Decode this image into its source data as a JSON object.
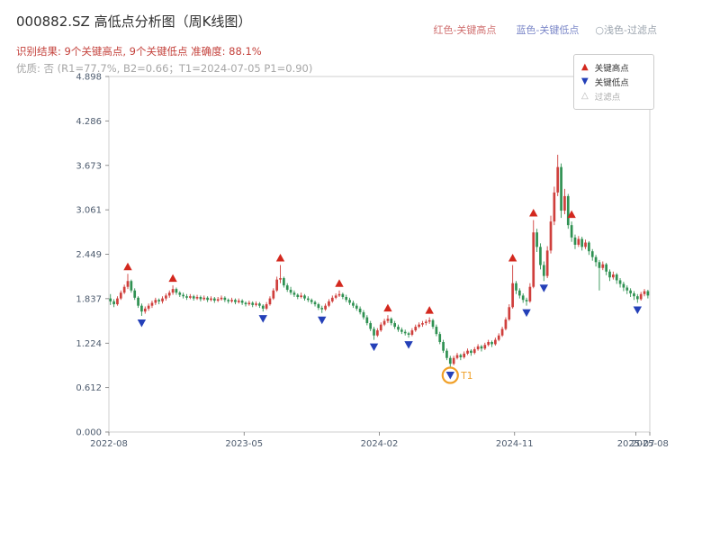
{
  "header": {
    "title": "000882.SZ 高低点分析图（周K线图）",
    "legend_top": {
      "high_label": "红色-关键高点",
      "low_label": "蓝色-关键低点",
      "filter_label": "○浅色-过滤点"
    },
    "result_line": "识别结果: 9个关键高点, 9个关键低点  准确度: 88.1%",
    "quality_line": "优质: 否 (R1=77.7%, B2=0.66；T1=2024-07-05 P1=0.90)"
  },
  "legend_box": {
    "items": [
      {
        "label": "关键高点",
        "type": "key-high"
      },
      {
        "label": "关键低点",
        "type": "key-low"
      },
      {
        "label": "过滤点",
        "type": "filtered"
      }
    ]
  },
  "chart_data": {
    "type": "candlestick",
    "symbol": "000882.SZ",
    "period": "weekly",
    "title": "000882.SZ 高低点分析图（周K线图）",
    "ylim": [
      0,
      4.898
    ],
    "y_ticks": [
      "0.000",
      "0.612",
      "1.224",
      "1.837",
      "2.449",
      "3.061",
      "3.673",
      "4.286",
      "4.898"
    ],
    "x_ticks": [
      {
        "i": 0,
        "label": "2022-08"
      },
      {
        "i": 39,
        "label": "2023-05"
      },
      {
        "i": 78,
        "label": "2024-02"
      },
      {
        "i": 117,
        "label": "2024-11"
      },
      {
        "i": 152,
        "label": "2025-07"
      },
      {
        "i": 156,
        "label": "2025-08"
      }
    ],
    "grid": false,
    "legend_position": "top-right",
    "candles": [
      [
        1.84,
        1.9,
        1.75,
        1.8
      ],
      [
        1.8,
        1.83,
        1.72,
        1.76
      ],
      [
        1.76,
        1.87,
        1.74,
        1.84
      ],
      [
        1.84,
        1.95,
        1.82,
        1.92
      ],
      [
        1.92,
        2.03,
        1.9,
        2.0
      ],
      [
        2.0,
        2.18,
        1.97,
        2.08
      ],
      [
        2.08,
        2.1,
        1.92,
        1.95
      ],
      [
        1.95,
        1.98,
        1.82,
        1.85
      ],
      [
        1.85,
        1.87,
        1.71,
        1.74
      ],
      [
        1.74,
        1.77,
        1.6,
        1.66
      ],
      [
        1.66,
        1.73,
        1.63,
        1.7
      ],
      [
        1.7,
        1.77,
        1.67,
        1.74
      ],
      [
        1.74,
        1.81,
        1.71,
        1.78
      ],
      [
        1.78,
        1.85,
        1.75,
        1.82
      ],
      [
        1.82,
        1.84,
        1.76,
        1.8
      ],
      [
        1.8,
        1.87,
        1.77,
        1.84
      ],
      [
        1.84,
        1.91,
        1.81,
        1.88
      ],
      [
        1.88,
        1.95,
        1.85,
        1.92
      ],
      [
        1.92,
        2.02,
        1.89,
        1.97
      ],
      [
        1.97,
        1.99,
        1.89,
        1.92
      ],
      [
        1.92,
        1.94,
        1.86,
        1.89
      ],
      [
        1.89,
        1.92,
        1.84,
        1.87
      ],
      [
        1.87,
        1.9,
        1.82,
        1.85
      ],
      [
        1.85,
        1.9,
        1.83,
        1.87
      ],
      [
        1.87,
        1.89,
        1.81,
        1.84
      ],
      [
        1.84,
        1.89,
        1.82,
        1.86
      ],
      [
        1.86,
        1.88,
        1.8,
        1.83
      ],
      [
        1.83,
        1.88,
        1.81,
        1.85
      ],
      [
        1.85,
        1.87,
        1.79,
        1.82
      ],
      [
        1.82,
        1.87,
        1.8,
        1.84
      ],
      [
        1.84,
        1.86,
        1.78,
        1.81
      ],
      [
        1.81,
        1.86,
        1.79,
        1.83
      ],
      [
        1.83,
        1.88,
        1.81,
        1.85
      ],
      [
        1.85,
        1.87,
        1.79,
        1.82
      ],
      [
        1.82,
        1.84,
        1.77,
        1.8
      ],
      [
        1.8,
        1.85,
        1.78,
        1.82
      ],
      [
        1.82,
        1.84,
        1.76,
        1.79
      ],
      [
        1.79,
        1.84,
        1.77,
        1.81
      ],
      [
        1.81,
        1.83,
        1.75,
        1.78
      ],
      [
        1.78,
        1.8,
        1.73,
        1.76
      ],
      [
        1.76,
        1.81,
        1.74,
        1.78
      ],
      [
        1.78,
        1.8,
        1.72,
        1.75
      ],
      [
        1.75,
        1.8,
        1.73,
        1.77
      ],
      [
        1.77,
        1.79,
        1.71,
        1.74
      ],
      [
        1.74,
        1.76,
        1.66,
        1.7
      ],
      [
        1.7,
        1.79,
        1.68,
        1.76
      ],
      [
        1.76,
        1.87,
        1.74,
        1.84
      ],
      [
        1.84,
        1.98,
        1.82,
        1.95
      ],
      [
        1.95,
        2.14,
        1.93,
        2.1
      ],
      [
        2.1,
        2.3,
        2.05,
        2.12
      ],
      [
        2.12,
        2.14,
        1.99,
        2.02
      ],
      [
        2.02,
        2.05,
        1.93,
        1.96
      ],
      [
        1.96,
        2.0,
        1.89,
        1.92
      ],
      [
        1.92,
        1.95,
        1.86,
        1.89
      ],
      [
        1.89,
        1.91,
        1.83,
        1.86
      ],
      [
        1.86,
        1.92,
        1.84,
        1.88
      ],
      [
        1.88,
        1.9,
        1.81,
        1.84
      ],
      [
        1.84,
        1.87,
        1.79,
        1.82
      ],
      [
        1.82,
        1.84,
        1.76,
        1.79
      ],
      [
        1.79,
        1.81,
        1.73,
        1.76
      ],
      [
        1.76,
        1.78,
        1.68,
        1.71
      ],
      [
        1.71,
        1.74,
        1.64,
        1.69
      ],
      [
        1.69,
        1.77,
        1.67,
        1.74
      ],
      [
        1.74,
        1.83,
        1.72,
        1.8
      ],
      [
        1.8,
        1.88,
        1.78,
        1.85
      ],
      [
        1.85,
        1.91,
        1.83,
        1.88
      ],
      [
        1.88,
        1.95,
        1.86,
        1.9
      ],
      [
        1.9,
        1.92,
        1.83,
        1.86
      ],
      [
        1.86,
        1.89,
        1.79,
        1.82
      ],
      [
        1.82,
        1.85,
        1.75,
        1.78
      ],
      [
        1.78,
        1.81,
        1.71,
        1.74
      ],
      [
        1.74,
        1.77,
        1.67,
        1.7
      ],
      [
        1.7,
        1.73,
        1.62,
        1.65
      ],
      [
        1.65,
        1.68,
        1.55,
        1.58
      ],
      [
        1.58,
        1.61,
        1.47,
        1.5
      ],
      [
        1.5,
        1.53,
        1.39,
        1.42
      ],
      [
        1.42,
        1.45,
        1.27,
        1.33
      ],
      [
        1.33,
        1.43,
        1.31,
        1.4
      ],
      [
        1.4,
        1.51,
        1.38,
        1.48
      ],
      [
        1.48,
        1.56,
        1.46,
        1.53
      ],
      [
        1.53,
        1.61,
        1.5,
        1.56
      ],
      [
        1.56,
        1.58,
        1.47,
        1.5
      ],
      [
        1.5,
        1.53,
        1.42,
        1.45
      ],
      [
        1.45,
        1.48,
        1.38,
        1.41
      ],
      [
        1.41,
        1.44,
        1.35,
        1.38
      ],
      [
        1.38,
        1.41,
        1.33,
        1.36
      ],
      [
        1.36,
        1.38,
        1.3,
        1.34
      ],
      [
        1.34,
        1.43,
        1.32,
        1.4
      ],
      [
        1.4,
        1.48,
        1.38,
        1.45
      ],
      [
        1.45,
        1.51,
        1.43,
        1.48
      ],
      [
        1.48,
        1.53,
        1.45,
        1.5
      ],
      [
        1.5,
        1.55,
        1.47,
        1.52
      ],
      [
        1.52,
        1.58,
        1.49,
        1.54
      ],
      [
        1.54,
        1.56,
        1.42,
        1.45
      ],
      [
        1.45,
        1.48,
        1.32,
        1.35
      ],
      [
        1.35,
        1.38,
        1.21,
        1.24
      ],
      [
        1.24,
        1.27,
        1.09,
        1.12
      ],
      [
        1.12,
        1.15,
        0.99,
        1.02
      ],
      [
        1.02,
        1.05,
        0.88,
        0.94
      ],
      [
        0.94,
        1.05,
        0.92,
        1.02
      ],
      [
        1.02,
        1.09,
        1.0,
        1.06
      ],
      [
        1.06,
        1.08,
        0.99,
        1.03
      ],
      [
        1.03,
        1.11,
        1.01,
        1.08
      ],
      [
        1.08,
        1.15,
        1.06,
        1.12
      ],
      [
        1.12,
        1.14,
        1.05,
        1.09
      ],
      [
        1.09,
        1.17,
        1.07,
        1.14
      ],
      [
        1.14,
        1.21,
        1.12,
        1.18
      ],
      [
        1.18,
        1.2,
        1.11,
        1.15
      ],
      [
        1.15,
        1.23,
        1.13,
        1.2
      ],
      [
        1.2,
        1.27,
        1.18,
        1.24
      ],
      [
        1.24,
        1.26,
        1.17,
        1.21
      ],
      [
        1.21,
        1.3,
        1.19,
        1.27
      ],
      [
        1.27,
        1.36,
        1.25,
        1.33
      ],
      [
        1.33,
        1.45,
        1.31,
        1.42
      ],
      [
        1.42,
        1.58,
        1.4,
        1.55
      ],
      [
        1.55,
        1.76,
        1.53,
        1.72
      ],
      [
        1.72,
        2.3,
        1.7,
        2.05
      ],
      [
        2.05,
        2.08,
        1.9,
        1.95
      ],
      [
        1.95,
        1.98,
        1.84,
        1.88
      ],
      [
        1.88,
        1.91,
        1.78,
        1.82
      ],
      [
        1.82,
        1.85,
        1.74,
        1.8
      ],
      [
        1.8,
        2.05,
        1.78,
        2.0
      ],
      [
        2.0,
        2.92,
        1.98,
        2.75
      ],
      [
        2.75,
        2.8,
        2.48,
        2.55
      ],
      [
        2.55,
        2.6,
        2.24,
        2.3
      ],
      [
        2.3,
        2.35,
        2.08,
        2.15
      ],
      [
        2.15,
        2.56,
        2.12,
        2.5
      ],
      [
        2.5,
        2.98,
        2.46,
        2.9
      ],
      [
        2.9,
        3.38,
        2.85,
        3.3
      ],
      [
        3.3,
        3.82,
        3.25,
        3.65
      ],
      [
        3.65,
        3.7,
        2.95,
        3.05
      ],
      [
        3.05,
        3.35,
        3.0,
        3.25
      ],
      [
        3.25,
        3.28,
        2.8,
        2.85
      ],
      [
        2.85,
        2.9,
        2.62,
        2.68
      ],
      [
        2.68,
        2.72,
        2.52,
        2.58
      ],
      [
        2.58,
        2.7,
        2.55,
        2.66
      ],
      [
        2.66,
        2.69,
        2.5,
        2.55
      ],
      [
        2.55,
        2.65,
        2.52,
        2.61
      ],
      [
        2.61,
        2.63,
        2.44,
        2.49
      ],
      [
        2.49,
        2.52,
        2.36,
        2.41
      ],
      [
        2.41,
        2.44,
        2.28,
        2.34
      ],
      [
        2.34,
        2.37,
        1.95,
        2.26
      ],
      [
        2.26,
        2.35,
        2.23,
        2.31
      ],
      [
        2.31,
        2.33,
        2.16,
        2.21
      ],
      [
        2.21,
        2.24,
        2.08,
        2.13
      ],
      [
        2.13,
        2.21,
        2.1,
        2.17
      ],
      [
        2.17,
        2.19,
        2.04,
        2.09
      ],
      [
        2.09,
        2.12,
        1.99,
        2.04
      ],
      [
        2.04,
        2.07,
        1.94,
        1.99
      ],
      [
        1.99,
        2.02,
        1.9,
        1.95
      ],
      [
        1.95,
        1.98,
        1.86,
        1.91
      ],
      [
        1.91,
        1.94,
        1.82,
        1.87
      ],
      [
        1.87,
        1.9,
        1.78,
        1.83
      ],
      [
        1.83,
        1.93,
        1.81,
        1.9
      ],
      [
        1.9,
        1.97,
        1.87,
        1.94
      ],
      [
        1.94,
        1.96,
        1.84,
        1.88
      ]
    ],
    "markers": {
      "key_highs": [
        5,
        18,
        49,
        66,
        80,
        92,
        116,
        122,
        133
      ],
      "key_lows": [
        9,
        44,
        61,
        76,
        86,
        98,
        120,
        125,
        152
      ],
      "t1": {
        "index": 98,
        "label": "T1"
      }
    },
    "colors": {
      "up": "#cf3f3c",
      "down": "#2f9152",
      "high_marker": "#d3281e",
      "low_marker": "#2440b8",
      "t1": "#f0a028",
      "axis_text": "#4d5b6e",
      "spine": "#cfcfcf"
    }
  }
}
